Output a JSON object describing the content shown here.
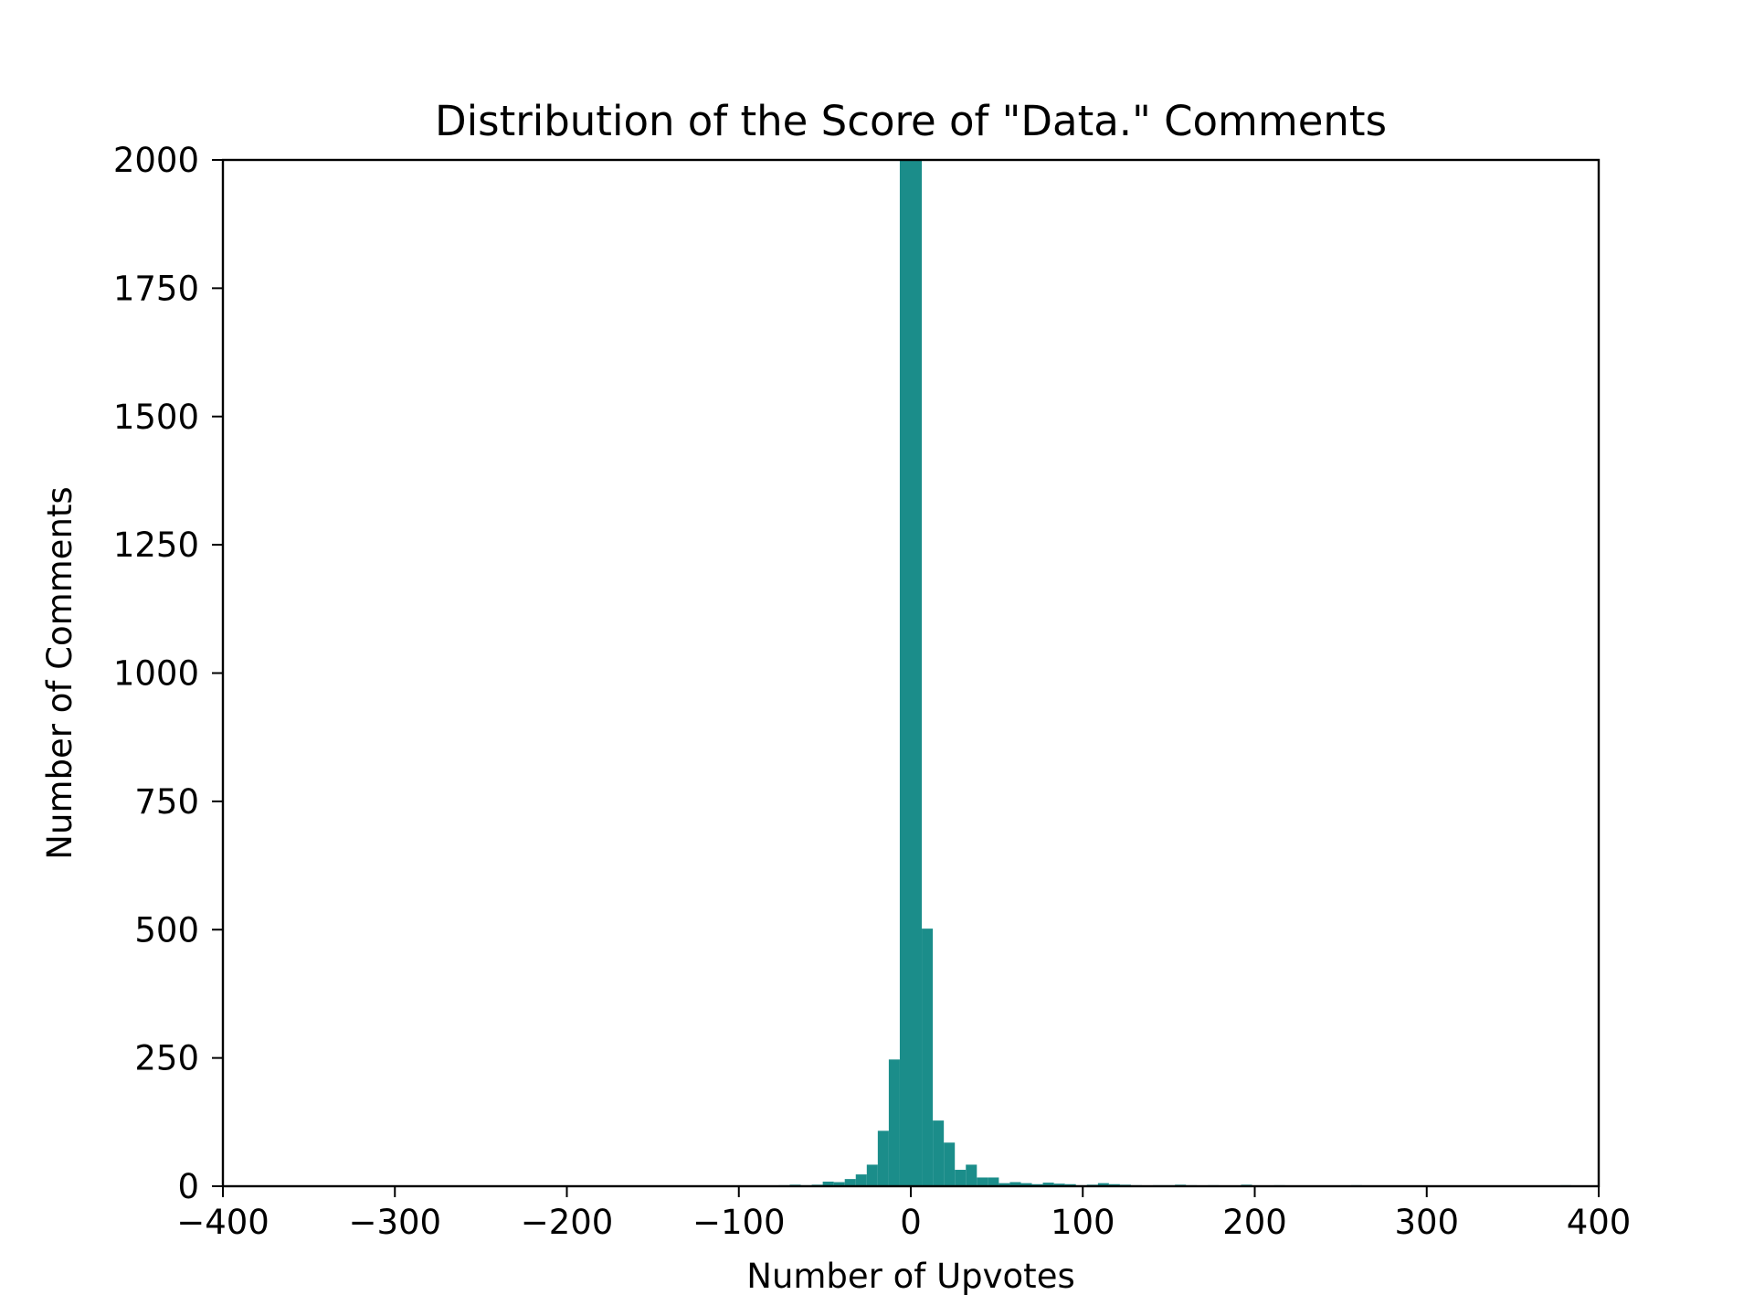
{
  "chart_data": {
    "type": "bar",
    "subtype": "histogram",
    "title": "Distribution of the Score of \"Data.\" Comments",
    "xlabel": "Number of Upvotes",
    "ylabel": "Number of Comments",
    "xlim": [
      -400,
      400
    ],
    "ylim": [
      0,
      2000
    ],
    "xticks": [
      -400,
      -300,
      -200,
      -100,
      0,
      100,
      200,
      300,
      400
    ],
    "xtick_labels": [
      "−400",
      "−300",
      "−200",
      "−100",
      "0",
      "100",
      "200",
      "300",
      "400"
    ],
    "yticks": [
      0,
      250,
      500,
      750,
      1000,
      1250,
      1500,
      1750,
      2000
    ],
    "ytick_labels": [
      "0",
      "250",
      "500",
      "750",
      "1000",
      "1250",
      "1500",
      "1750",
      "2000"
    ],
    "grid": false,
    "legend": "none",
    "bar_color": "#1b8d8a",
    "bin_width": 6.4,
    "bins": [
      {
        "x0": -89.6,
        "value": 1
      },
      {
        "x0": -83.2,
        "value": 1
      },
      {
        "x0": -76.8,
        "value": 2
      },
      {
        "x0": -70.4,
        "value": 3
      },
      {
        "x0": -64.0,
        "value": 2
      },
      {
        "x0": -57.6,
        "value": 3
      },
      {
        "x0": -51.2,
        "value": 9
      },
      {
        "x0": -44.8,
        "value": 8
      },
      {
        "x0": -38.4,
        "value": 14
      },
      {
        "x0": -32.0,
        "value": 23
      },
      {
        "x0": -25.6,
        "value": 42
      },
      {
        "x0": -19.2,
        "value": 108
      },
      {
        "x0": -12.8,
        "value": 247
      },
      {
        "x0": -6.4,
        "value": 2000
      },
      {
        "x0": 0.0,
        "value": 2000
      },
      {
        "x0": 6.4,
        "value": 502
      },
      {
        "x0": 12.8,
        "value": 128
      },
      {
        "x0": 19.2,
        "value": 85
      },
      {
        "x0": 25.6,
        "value": 32
      },
      {
        "x0": 32.0,
        "value": 42
      },
      {
        "x0": 38.4,
        "value": 17
      },
      {
        "x0": 44.8,
        "value": 17
      },
      {
        "x0": 51.2,
        "value": 6
      },
      {
        "x0": 57.6,
        "value": 8
      },
      {
        "x0": 64.0,
        "value": 6
      },
      {
        "x0": 70.4,
        "value": 4
      },
      {
        "x0": 76.8,
        "value": 7
      },
      {
        "x0": 83.2,
        "value": 5
      },
      {
        "x0": 89.6,
        "value": 4
      },
      {
        "x0": 96.0,
        "value": 2
      },
      {
        "x0": 102.4,
        "value": 3
      },
      {
        "x0": 108.8,
        "value": 6
      },
      {
        "x0": 115.2,
        "value": 4
      },
      {
        "x0": 121.6,
        "value": 3
      },
      {
        "x0": 128.0,
        "value": 2
      },
      {
        "x0": 140.8,
        "value": 2
      },
      {
        "x0": 147.2,
        "value": 2
      },
      {
        "x0": 153.6,
        "value": 3
      },
      {
        "x0": 160.0,
        "value": 2
      },
      {
        "x0": 172.8,
        "value": 2
      },
      {
        "x0": 192.0,
        "value": 3
      },
      {
        "x0": 211.2,
        "value": 2
      },
      {
        "x0": 256.0,
        "value": 2
      },
      {
        "x0": 377.6,
        "value": 2
      }
    ]
  }
}
